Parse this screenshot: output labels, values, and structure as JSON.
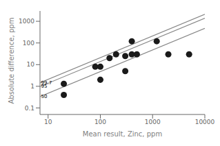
{
  "chart_data": {
    "type": "scatter",
    "xlabel": "Mean result, Zinc, ppm",
    "ylabel": "Absolute difference, ppm",
    "log": true,
    "grid": false,
    "xlim": [
      7,
      10000
    ],
    "ylim": [
      0.05,
      3000
    ],
    "xticks": [
      10,
      100,
      1000,
      10000
    ],
    "yticks": [
      0.1,
      1,
      10,
      100,
      1000
    ],
    "series": [
      {
        "type": "line",
        "color": "#888888",
        "x": [
          7,
          10000
        ],
        "values": [
          1.46908505,
          2098.69293
        ]
      },
      {
        "type": "line",
        "color": "#888888",
        "x": [
          7,
          10000
        ],
        "values": [
          0.970150503,
          1385.92929
        ]
      },
      {
        "type": "line",
        "color": "#888888",
        "x": [
          7,
          10000
        ],
        "values": [
          0.33386047,
          476.94353
        ]
      },
      {
        "type": "scatter",
        "color": "#1a1a1a",
        "x": [
          20,
          20,
          80,
          100,
          100,
          150,
          200,
          300,
          300,
          400,
          400,
          500,
          1200,
          2000,
          5000
        ],
        "values": [
          1.3,
          0.4,
          8,
          8,
          2,
          20,
          30,
          25,
          5,
          30,
          120,
          30,
          120,
          30,
          30
        ]
      }
    ],
    "annotations": [
      {
        "text": "99.7",
        "x": 7.35,
        "y": 1.46908505
      },
      {
        "text": "95",
        "x": 7.35,
        "y": 0.970150503
      },
      {
        "text": "50",
        "x": 7.35,
        "y": 0.33386047
      }
    ]
  }
}
